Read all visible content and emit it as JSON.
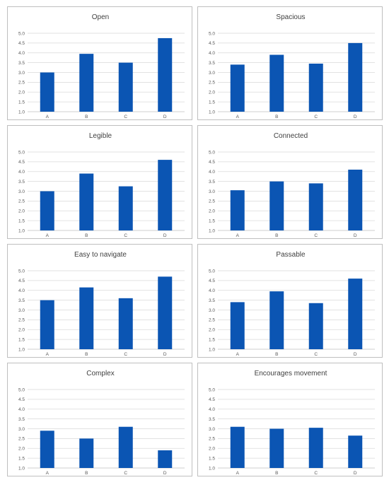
{
  "chart_data": [
    {
      "type": "bar",
      "title": "Open",
      "categories": [
        "A",
        "B",
        "C",
        "D"
      ],
      "values": [
        3.0,
        3.95,
        3.5,
        4.75
      ],
      "ylim": [
        1.0,
        5.0
      ],
      "yticks": [
        "1.0",
        "1.5",
        "2.0",
        "2.5",
        "3.0",
        "3.5",
        "4.0",
        "4.5",
        "5.0"
      ],
      "grid": true,
      "color": "#0b55b3"
    },
    {
      "type": "bar",
      "title": "Spacious",
      "categories": [
        "A",
        "B",
        "C",
        "D"
      ],
      "values": [
        3.4,
        3.9,
        3.45,
        4.5
      ],
      "ylim": [
        1.0,
        5.0
      ],
      "yticks": [
        "1.0",
        "1.5",
        "2.0",
        "2.5",
        "3.0",
        "3.5",
        "4.0",
        "4.5",
        "5.0"
      ],
      "grid": true,
      "color": "#0b55b3"
    },
    {
      "type": "bar",
      "title": "Legible",
      "categories": [
        "A",
        "B",
        "C",
        "D"
      ],
      "values": [
        3.0,
        3.9,
        3.25,
        4.6
      ],
      "ylim": [
        1.0,
        5.0
      ],
      "yticks": [
        "1.0",
        "1.5",
        "2.0",
        "2.5",
        "3.0",
        "3.5",
        "4.0",
        "4.5",
        "5.0"
      ],
      "grid": true,
      "color": "#0b55b3"
    },
    {
      "type": "bar",
      "title": "Connected",
      "categories": [
        "A",
        "B",
        "C",
        "D"
      ],
      "values": [
        3.05,
        3.5,
        3.4,
        4.1
      ],
      "ylim": [
        1.0,
        5.0
      ],
      "yticks": [
        "1.0",
        "1.5",
        "2.0",
        "2.5",
        "3.0",
        "3.5",
        "4.0",
        "4.5",
        "5.0"
      ],
      "grid": true,
      "color": "#0b55b3"
    },
    {
      "type": "bar",
      "title": "Easy to navigate",
      "categories": [
        "A",
        "B",
        "C",
        "D"
      ],
      "values": [
        3.5,
        4.15,
        3.6,
        4.7
      ],
      "ylim": [
        1.0,
        5.0
      ],
      "yticks": [
        "1.0",
        "1.5",
        "2.0",
        "2.5",
        "3.0",
        "3.5",
        "4.0",
        "4.5",
        "5.0"
      ],
      "grid": true,
      "color": "#0b55b3"
    },
    {
      "type": "bar",
      "title": "Passable",
      "categories": [
        "A",
        "B",
        "C",
        "D"
      ],
      "values": [
        3.4,
        3.95,
        3.35,
        4.6
      ],
      "ylim": [
        1.0,
        5.0
      ],
      "yticks": [
        "1.0",
        "1.5",
        "2.0",
        "2.5",
        "3.0",
        "3.5",
        "4.0",
        "4.5",
        "5.0"
      ],
      "grid": true,
      "color": "#0b55b3"
    },
    {
      "type": "bar",
      "title": "Complex",
      "categories": [
        "A",
        "B",
        "C",
        "D"
      ],
      "values": [
        2.9,
        2.5,
        3.1,
        1.9
      ],
      "ylim": [
        1.0,
        5.0
      ],
      "yticks": [
        "1.0",
        "1.5",
        "2.0",
        "2.5",
        "3.0",
        "3.5",
        "4.0",
        "4.5",
        "5.0"
      ],
      "grid": true,
      "color": "#0b55b3"
    },
    {
      "type": "bar",
      "title": "Encourages movement",
      "categories": [
        "A",
        "B",
        "C",
        "D"
      ],
      "values": [
        3.1,
        3.0,
        3.05,
        2.65
      ],
      "ylim": [
        1.0,
        5.0
      ],
      "yticks": [
        "1.0",
        "1.5",
        "2.0",
        "2.5",
        "3.0",
        "3.5",
        "4.0",
        "4.5",
        "5.0"
      ],
      "grid": true,
      "color": "#0b55b3"
    }
  ]
}
